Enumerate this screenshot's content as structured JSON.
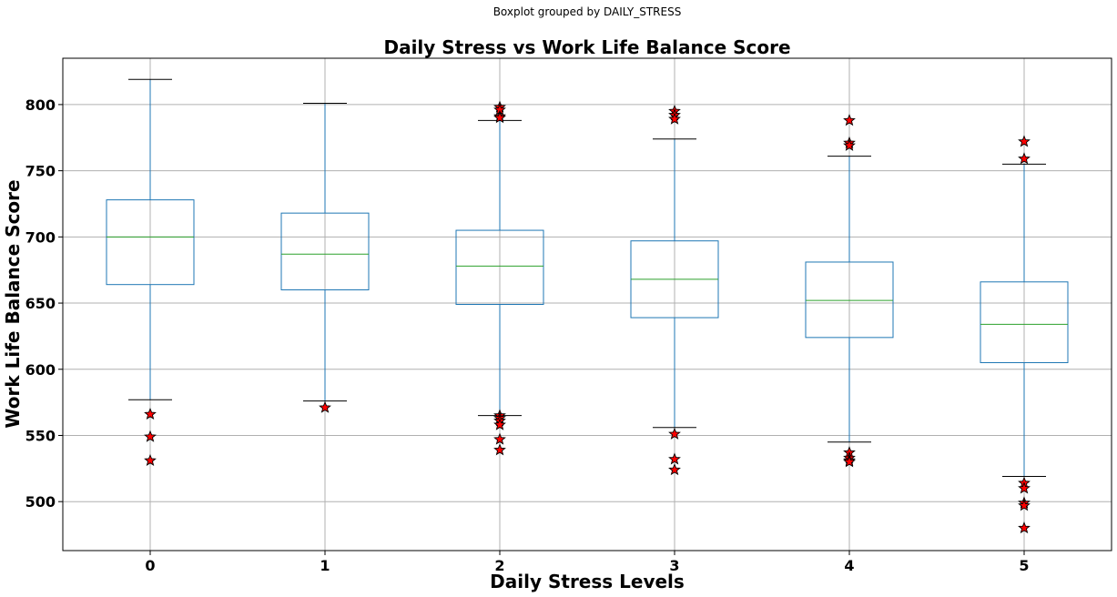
{
  "chart_data": {
    "type": "boxplot",
    "suptitle": "Boxplot grouped by DAILY_STRESS",
    "title": "Daily Stress vs Work Life Balance Score",
    "xlabel": "Daily Stress Levels",
    "ylabel": "Work Life Balance Score",
    "categories": [
      "0",
      "1",
      "2",
      "3",
      "4",
      "5"
    ],
    "ylim": [
      463,
      835
    ],
    "yticks": [
      500,
      550,
      600,
      650,
      700,
      750,
      800
    ],
    "grid": true,
    "colors": {
      "box": "#1f77b4",
      "median": "#2ca02c",
      "whisker": "#1f77b4",
      "cap": "#000000",
      "flier_fill": "#ff0000",
      "flier_edge": "#000000"
    },
    "boxes": [
      {
        "category": "0",
        "whislo": 577,
        "q1": 664,
        "med": 700,
        "q3": 728,
        "whishi": 819,
        "fliers": [
          566,
          549,
          531
        ]
      },
      {
        "category": "1",
        "whislo": 576,
        "q1": 660,
        "med": 687,
        "q3": 718,
        "whishi": 801,
        "fliers": [
          571
        ]
      },
      {
        "category": "2",
        "whislo": 565,
        "q1": 649,
        "med": 678,
        "q3": 705,
        "whishi": 788,
        "fliers": [
          798,
          796,
          791,
          790,
          565,
          563,
          561,
          558,
          547,
          539
        ]
      },
      {
        "category": "3",
        "whislo": 556,
        "q1": 639,
        "med": 668,
        "q3": 697,
        "whishi": 774,
        "fliers": [
          795,
          792,
          789,
          551,
          532,
          524
        ]
      },
      {
        "category": "4",
        "whislo": 545,
        "q1": 624,
        "med": 652,
        "q3": 681,
        "whishi": 761,
        "fliers": [
          788,
          771,
          769,
          537,
          533,
          531,
          530
        ]
      },
      {
        "category": "5",
        "whislo": 519,
        "q1": 605,
        "med": 634,
        "q3": 666,
        "whishi": 755,
        "fliers": [
          772,
          759,
          514,
          510,
          499,
          497,
          480
        ]
      }
    ]
  }
}
